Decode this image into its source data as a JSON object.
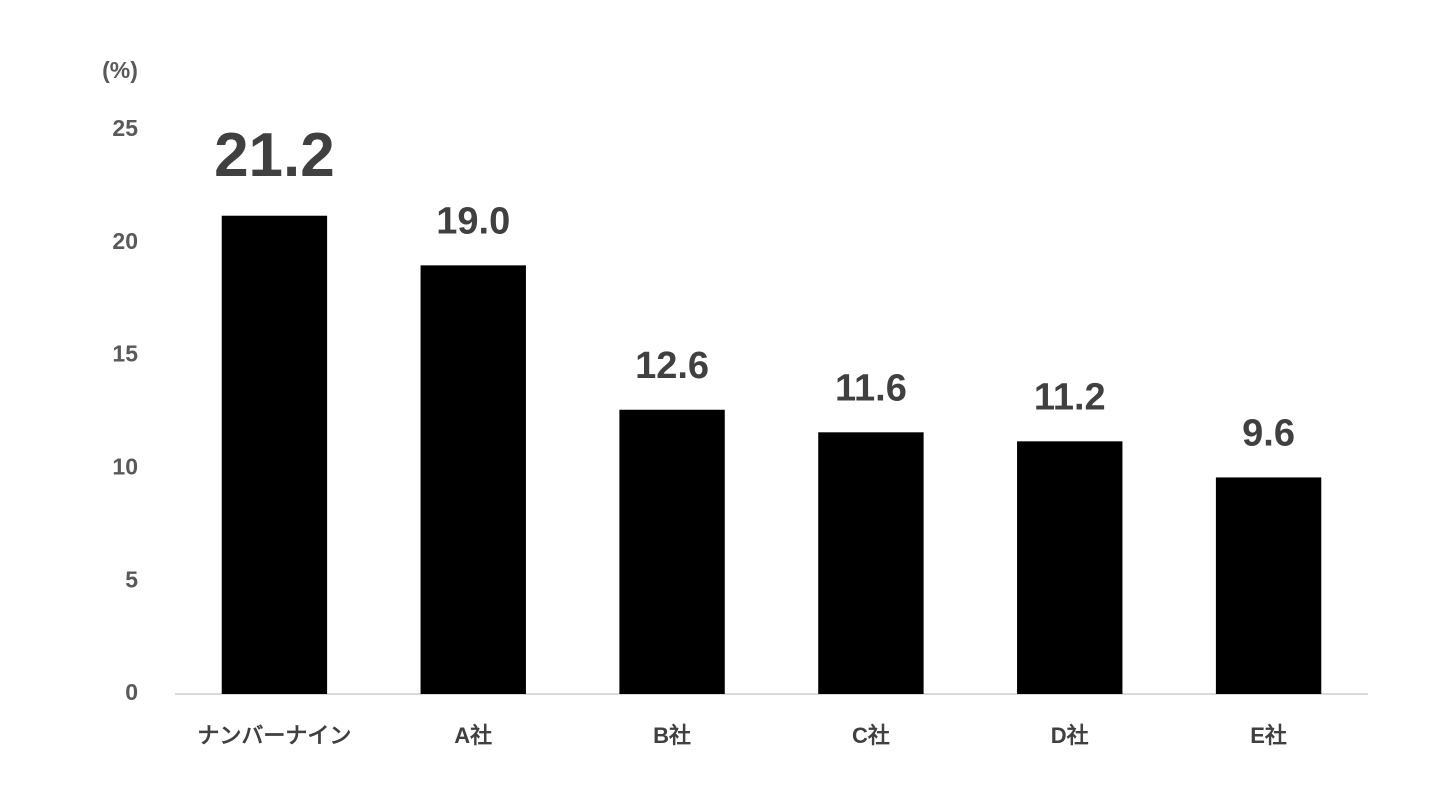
{
  "chart_data": {
    "type": "bar",
    "y_label": "(%)",
    "categories": [
      "ナンバーナイン",
      "A社",
      "B社",
      "C社",
      "D社",
      "E社"
    ],
    "values": [
      21.2,
      19.0,
      12.6,
      11.6,
      11.2,
      9.6
    ],
    "value_labels": [
      "21.2",
      "19.0",
      "12.6",
      "11.6",
      "11.2",
      "9.6"
    ],
    "color": "#000000",
    "ylim": [
      0,
      25
    ],
    "yticks": [
      0,
      5,
      10,
      15,
      20,
      25
    ],
    "grid": false
  }
}
